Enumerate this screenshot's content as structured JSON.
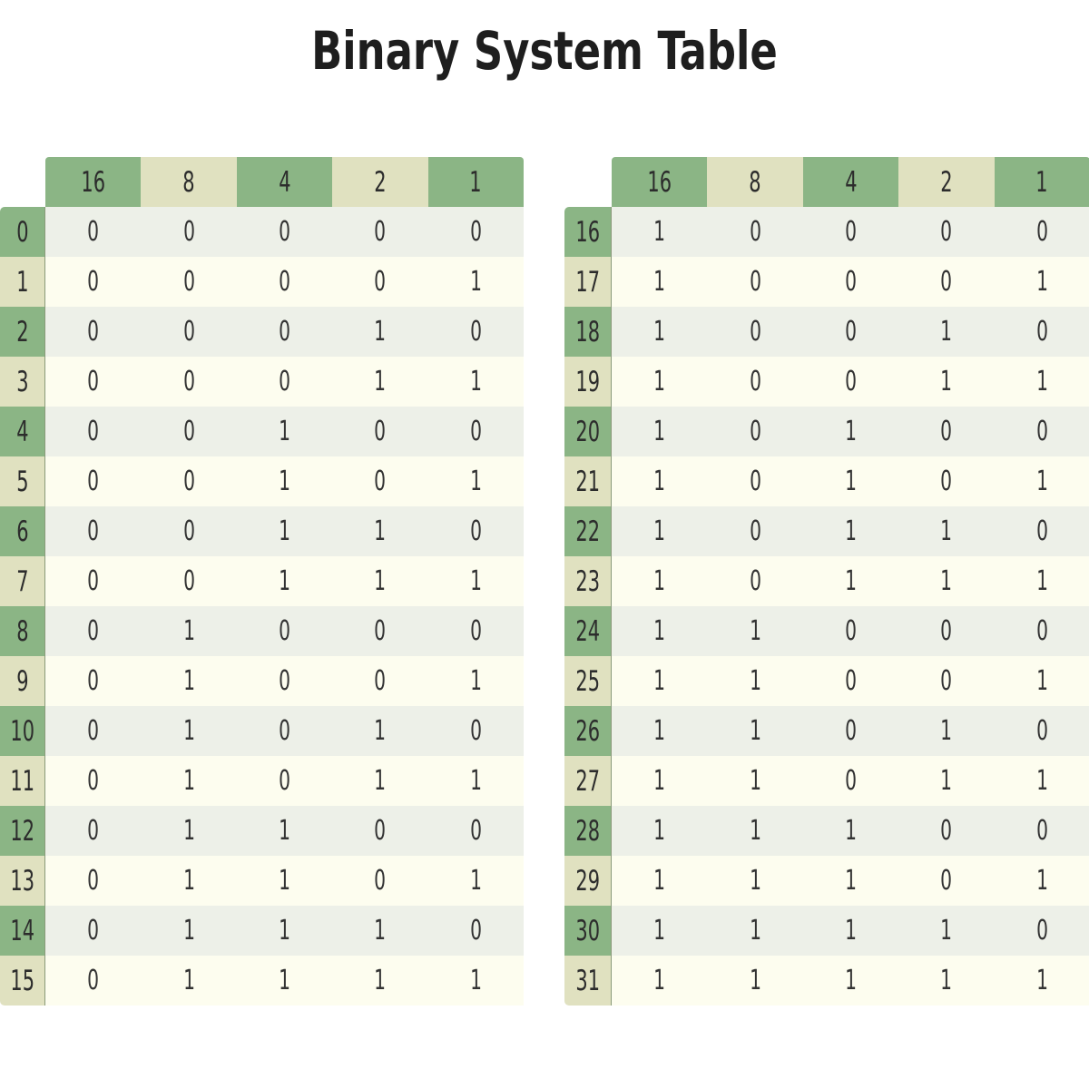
{
  "title": "Binary System Table",
  "colors": {
    "green": "#8bb585",
    "beige": "#e0e1c0",
    "row_even": "#edf0e8",
    "row_odd": "#fdfdef"
  },
  "headers": [
    "16",
    "8",
    "4",
    "2",
    "1"
  ],
  "tables": [
    {
      "rows": [
        {
          "label": "0",
          "bits": [
            "0",
            "0",
            "0",
            "0",
            "0"
          ]
        },
        {
          "label": "1",
          "bits": [
            "0",
            "0",
            "0",
            "0",
            "1"
          ]
        },
        {
          "label": "2",
          "bits": [
            "0",
            "0",
            "0",
            "1",
            "0"
          ]
        },
        {
          "label": "3",
          "bits": [
            "0",
            "0",
            "0",
            "1",
            "1"
          ]
        },
        {
          "label": "4",
          "bits": [
            "0",
            "0",
            "1",
            "0",
            "0"
          ]
        },
        {
          "label": "5",
          "bits": [
            "0",
            "0",
            "1",
            "0",
            "1"
          ]
        },
        {
          "label": "6",
          "bits": [
            "0",
            "0",
            "1",
            "1",
            "0"
          ]
        },
        {
          "label": "7",
          "bits": [
            "0",
            "0",
            "1",
            "1",
            "1"
          ]
        },
        {
          "label": "8",
          "bits": [
            "0",
            "1",
            "0",
            "0",
            "0"
          ]
        },
        {
          "label": "9",
          "bits": [
            "0",
            "1",
            "0",
            "0",
            "1"
          ]
        },
        {
          "label": "10",
          "bits": [
            "0",
            "1",
            "0",
            "1",
            "0"
          ]
        },
        {
          "label": "11",
          "bits": [
            "0",
            "1",
            "0",
            "1",
            "1"
          ]
        },
        {
          "label": "12",
          "bits": [
            "0",
            "1",
            "1",
            "0",
            "0"
          ]
        },
        {
          "label": "13",
          "bits": [
            "0",
            "1",
            "1",
            "0",
            "1"
          ]
        },
        {
          "label": "14",
          "bits": [
            "0",
            "1",
            "1",
            "1",
            "0"
          ]
        },
        {
          "label": "15",
          "bits": [
            "0",
            "1",
            "1",
            "1",
            "1"
          ]
        }
      ]
    },
    {
      "rows": [
        {
          "label": "16",
          "bits": [
            "1",
            "0",
            "0",
            "0",
            "0"
          ]
        },
        {
          "label": "17",
          "bits": [
            "1",
            "0",
            "0",
            "0",
            "1"
          ]
        },
        {
          "label": "18",
          "bits": [
            "1",
            "0",
            "0",
            "1",
            "0"
          ]
        },
        {
          "label": "19",
          "bits": [
            "1",
            "0",
            "0",
            "1",
            "1"
          ]
        },
        {
          "label": "20",
          "bits": [
            "1",
            "0",
            "1",
            "0",
            "0"
          ]
        },
        {
          "label": "21",
          "bits": [
            "1",
            "0",
            "1",
            "0",
            "1"
          ]
        },
        {
          "label": "22",
          "bits": [
            "1",
            "0",
            "1",
            "1",
            "0"
          ]
        },
        {
          "label": "23",
          "bits": [
            "1",
            "0",
            "1",
            "1",
            "1"
          ]
        },
        {
          "label": "24",
          "bits": [
            "1",
            "1",
            "0",
            "0",
            "0"
          ]
        },
        {
          "label": "25",
          "bits": [
            "1",
            "1",
            "0",
            "0",
            "1"
          ]
        },
        {
          "label": "26",
          "bits": [
            "1",
            "1",
            "0",
            "1",
            "0"
          ]
        },
        {
          "label": "27",
          "bits": [
            "1",
            "1",
            "0",
            "1",
            "1"
          ]
        },
        {
          "label": "28",
          "bits": [
            "1",
            "1",
            "1",
            "0",
            "0"
          ]
        },
        {
          "label": "29",
          "bits": [
            "1",
            "1",
            "1",
            "0",
            "1"
          ]
        },
        {
          "label": "30",
          "bits": [
            "1",
            "1",
            "1",
            "1",
            "0"
          ]
        },
        {
          "label": "31",
          "bits": [
            "1",
            "1",
            "1",
            "1",
            "1"
          ]
        }
      ]
    }
  ]
}
